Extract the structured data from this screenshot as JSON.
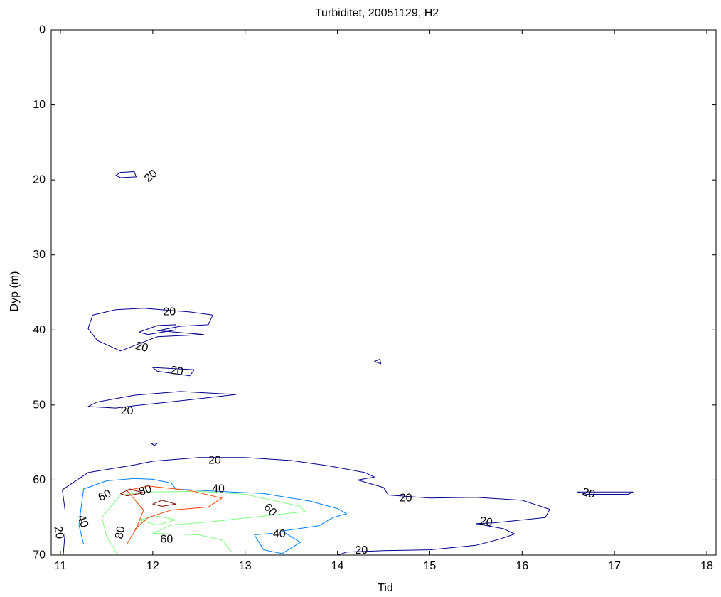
{
  "chart_data": {
    "type": "contour",
    "title": "Turbiditet, 20051129, H2",
    "xlabel": "Tid",
    "ylabel": "Dyp (m)",
    "xlim": [
      10.9,
      18.1
    ],
    "ylim": [
      70,
      0
    ],
    "y_reversed": true,
    "xticks": [
      11,
      12,
      13,
      14,
      15,
      16,
      17,
      18
    ],
    "yticks": [
      0,
      10,
      20,
      30,
      40,
      50,
      60,
      70
    ],
    "grid": false,
    "legend": "none",
    "levels": [
      {
        "value": 20,
        "color": "#00008f"
      },
      {
        "value": 40,
        "color": "#0080ff"
      },
      {
        "value": 60,
        "color": "#80ff80"
      },
      {
        "value": 80,
        "color": "#ff4000"
      },
      {
        "value": 100,
        "color": "#800000"
      }
    ],
    "contours": [
      {
        "level": 20,
        "closed": true,
        "points": [
          [
            11.65,
            19.0
          ],
          [
            11.8,
            18.9
          ],
          [
            11.82,
            19.6
          ],
          [
            11.65,
            19.7
          ],
          [
            11.6,
            19.4
          ]
        ]
      },
      {
        "level": 20,
        "closed": true,
        "points": [
          [
            11.35,
            38.0
          ],
          [
            11.6,
            37.3
          ],
          [
            11.9,
            37.1
          ],
          [
            12.4,
            37.6
          ],
          [
            12.65,
            38.0
          ],
          [
            12.6,
            39.3
          ],
          [
            12.3,
            39.5
          ],
          [
            12.05,
            40.1
          ],
          [
            12.55,
            40.6
          ],
          [
            12.05,
            40.9
          ],
          [
            11.9,
            41.6
          ],
          [
            11.65,
            42.8
          ],
          [
            11.4,
            41.4
          ],
          [
            11.3,
            39.8
          ]
        ]
      },
      {
        "level": 20,
        "closed": true,
        "points": [
          [
            11.85,
            40.3
          ],
          [
            12.05,
            39.4
          ],
          [
            12.25,
            39.3
          ],
          [
            12.25,
            40.0
          ],
          [
            11.95,
            40.6
          ]
        ]
      },
      {
        "level": 20,
        "closed": true,
        "points": [
          [
            12.0,
            45.0
          ],
          [
            12.45,
            45.3
          ],
          [
            12.4,
            46.1
          ],
          [
            12.05,
            45.5
          ]
        ]
      },
      {
        "level": 20,
        "closed": true,
        "points": [
          [
            11.4,
            49.6
          ],
          [
            11.8,
            48.7
          ],
          [
            12.3,
            48.2
          ],
          [
            12.9,
            48.6
          ],
          [
            12.4,
            49.3
          ],
          [
            11.8,
            50.1
          ],
          [
            11.6,
            50.4
          ],
          [
            11.3,
            50.2
          ]
        ]
      },
      {
        "level": 20,
        "closed": true,
        "points": [
          [
            11.98,
            55.1
          ],
          [
            12.05,
            55.1
          ],
          [
            12.02,
            55.4
          ]
        ]
      },
      {
        "level": 20,
        "closed": true,
        "points": [
          [
            14.4,
            44.2
          ],
          [
            14.46,
            43.9
          ],
          [
            14.47,
            44.5
          ]
        ]
      },
      {
        "level": 20,
        "closed": true,
        "points": [
          [
            16.6,
            61.6
          ],
          [
            17.2,
            61.6
          ],
          [
            17.15,
            61.9
          ],
          [
            16.7,
            61.9
          ]
        ]
      },
      {
        "level": 20,
        "closed": false,
        "points": [
          [
            11.03,
            70.0
          ],
          [
            11.05,
            67.0
          ],
          [
            11.05,
            64.0
          ],
          [
            11.02,
            61.3
          ],
          [
            11.3,
            59.0
          ],
          [
            11.8,
            58.0
          ],
          [
            12.0,
            57.5
          ],
          [
            12.5,
            57.0
          ],
          [
            13.0,
            57.0
          ],
          [
            13.5,
            57.4
          ],
          [
            13.9,
            58.1
          ],
          [
            14.3,
            59.0
          ],
          [
            14.4,
            59.6
          ],
          [
            14.22,
            60.0
          ],
          [
            14.5,
            61.0
          ],
          [
            14.55,
            62.0
          ],
          [
            15.0,
            62.4
          ],
          [
            15.5,
            62.3
          ],
          [
            16.0,
            62.7
          ],
          [
            16.3,
            63.9
          ],
          [
            16.25,
            65.0
          ],
          [
            15.7,
            65.7
          ],
          [
            15.5,
            65.8
          ],
          [
            15.8,
            66.5
          ],
          [
            15.92,
            67.2
          ],
          [
            15.75,
            67.9
          ],
          [
            15.5,
            68.7
          ],
          [
            15.0,
            69.3
          ],
          [
            14.5,
            69.4
          ],
          [
            14.1,
            69.6
          ],
          [
            14.0,
            70.0
          ]
        ]
      },
      {
        "level": 40,
        "closed": false,
        "points": [
          [
            11.25,
            68.5
          ],
          [
            11.2,
            66.0
          ],
          [
            11.25,
            61.2
          ],
          [
            11.5,
            60.1
          ],
          [
            11.8,
            59.8
          ],
          [
            12.0,
            59.9
          ],
          [
            12.2,
            60.4
          ],
          [
            12.25,
            61.2
          ],
          [
            12.7,
            61.5
          ],
          [
            13.2,
            61.8
          ],
          [
            13.7,
            62.8
          ],
          [
            14.0,
            63.8
          ],
          [
            14.1,
            64.5
          ],
          [
            13.95,
            65.0
          ],
          [
            13.8,
            66.1
          ],
          [
            13.4,
            66.8
          ],
          [
            13.6,
            68.3
          ],
          [
            13.4,
            69.8
          ],
          [
            13.2,
            69.3
          ],
          [
            13.1,
            67.3
          ],
          [
            13.3,
            67.1
          ]
        ]
      },
      {
        "level": 60,
        "closed": false,
        "points": [
          [
            11.62,
            70.0
          ],
          [
            11.5,
            67.5
          ],
          [
            11.45,
            65.0
          ],
          [
            11.65,
            62.0
          ],
          [
            11.95,
            61.6
          ],
          [
            12.5,
            61.5
          ],
          [
            13.0,
            61.9
          ],
          [
            13.6,
            63.5
          ],
          [
            13.65,
            64.2
          ],
          [
            13.2,
            64.8
          ],
          [
            12.6,
            65.6
          ],
          [
            12.2,
            66.0
          ],
          [
            12.0,
            67.1
          ],
          [
            12.5,
            67.3
          ],
          [
            12.75,
            68.0
          ],
          [
            12.85,
            69.5
          ]
        ]
      },
      {
        "level": 60,
        "closed": true,
        "points": [
          [
            11.85,
            65.3
          ],
          [
            12.05,
            64.8
          ],
          [
            12.25,
            65.3
          ],
          [
            12.05,
            66.0
          ]
        ]
      },
      {
        "level": 80,
        "closed": false,
        "points": [
          [
            11.72,
            68.5
          ],
          [
            11.82,
            66.5
          ],
          [
            11.9,
            64.0
          ],
          [
            11.72,
            61.4
          ],
          [
            11.95,
            60.8
          ],
          [
            12.4,
            61.4
          ],
          [
            12.75,
            62.4
          ],
          [
            12.6,
            63.6
          ],
          [
            12.2,
            64.0
          ],
          [
            11.95,
            65.0
          ],
          [
            11.8,
            66.6
          ]
        ]
      },
      {
        "level": 100,
        "closed": true,
        "points": [
          [
            11.65,
            61.8
          ],
          [
            11.75,
            61.2
          ],
          [
            11.9,
            61.7
          ],
          [
            11.72,
            62.1
          ]
        ]
      },
      {
        "level": 100,
        "closed": true,
        "points": [
          [
            12.0,
            63.2
          ],
          [
            12.1,
            62.7
          ],
          [
            12.25,
            63.2
          ],
          [
            12.1,
            63.5
          ]
        ]
      }
    ],
    "labels": [
      {
        "text": "20",
        "x": 11.98,
        "y": 19.5,
        "rotation": -40
      },
      {
        "text": "20",
        "x": 12.18,
        "y": 37.6,
        "rotation": 0
      },
      {
        "text": "20",
        "x": 11.88,
        "y": 42.3,
        "rotation": 15
      },
      {
        "text": "20",
        "x": 12.26,
        "y": 45.5,
        "rotation": 10
      },
      {
        "text": "20",
        "x": 11.72,
        "y": 50.8,
        "rotation": 0
      },
      {
        "text": "20",
        "x": 12.67,
        "y": 57.4,
        "rotation": 0
      },
      {
        "text": "20",
        "x": 14.74,
        "y": 62.4,
        "rotation": 0
      },
      {
        "text": "20",
        "x": 16.72,
        "y": 61.8,
        "rotation": 15
      },
      {
        "text": "20",
        "x": 15.61,
        "y": 65.6,
        "rotation": 10
      },
      {
        "text": "20",
        "x": 14.26,
        "y": 69.4,
        "rotation": 0
      },
      {
        "text": "20",
        "x": 10.98,
        "y": 67.0,
        "rotation": 80
      },
      {
        "text": "40",
        "x": 12.71,
        "y": 61.2,
        "rotation": 0
      },
      {
        "text": "40",
        "x": 11.24,
        "y": 65.5,
        "rotation": 70
      },
      {
        "text": "40",
        "x": 13.37,
        "y": 67.2,
        "rotation": 0
      },
      {
        "text": "60",
        "x": 11.48,
        "y": 62.1,
        "rotation": -25
      },
      {
        "text": "60",
        "x": 13.27,
        "y": 64.0,
        "rotation": 45
      },
      {
        "text": "60",
        "x": 12.15,
        "y": 67.9,
        "rotation": 0
      },
      {
        "text": "80",
        "x": 11.92,
        "y": 61.4,
        "rotation": -20
      },
      {
        "text": "80",
        "x": 11.65,
        "y": 67.0,
        "rotation": -80
      }
    ]
  }
}
